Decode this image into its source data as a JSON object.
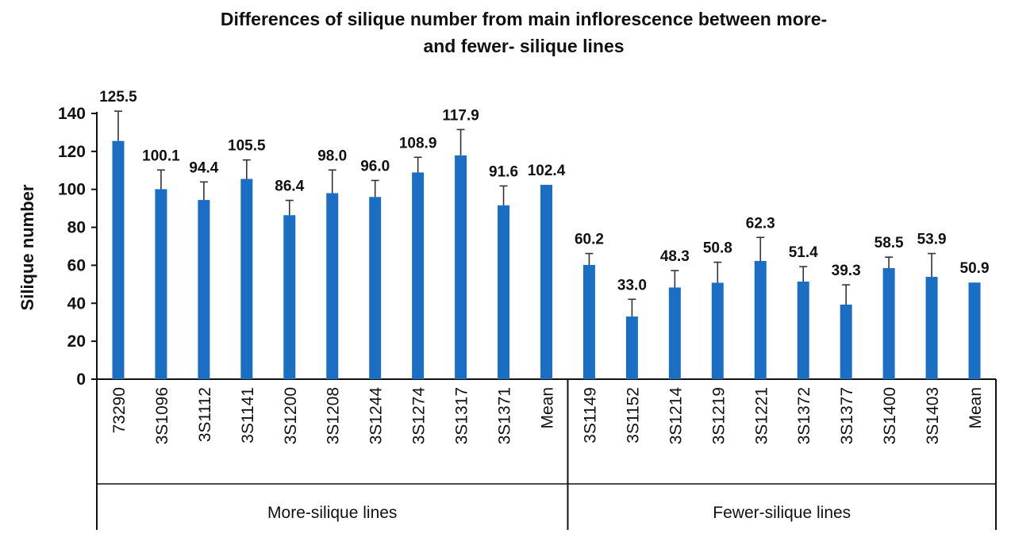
{
  "chart_data": {
    "type": "bar",
    "title_lines": [
      "Differences of silique number from main inflorescence between more-",
      "and fewer- silique  lines"
    ],
    "ylabel": "Silique number",
    "ylim": [
      0,
      140
    ],
    "yticks": [
      0,
      20,
      40,
      60,
      80,
      100,
      120,
      140
    ],
    "grid": false,
    "bar_color": "#1a6fc4",
    "categories": [
      "73290",
      "3S1096",
      "3S1112",
      "3S1141",
      "3S1200",
      "3S1208",
      "3S1244",
      "3S1274",
      "3S1317",
      "3S1371",
      "Mean",
      "3S1149",
      "3S1152",
      "3S1214",
      "3S1219",
      "3S1221",
      "3S1372",
      "3S1377",
      "3S1400",
      "3S1403",
      "Mean"
    ],
    "values": [
      125.5,
      100.1,
      94.4,
      105.5,
      86.4,
      98.0,
      96.0,
      108.9,
      117.9,
      91.6,
      102.4,
      60.2,
      33.0,
      48.3,
      50.8,
      62.3,
      51.4,
      39.3,
      58.5,
      53.9,
      50.9
    ],
    "value_labels": [
      "125.5",
      "100.1",
      "94.4",
      "105.5",
      "86.4",
      "98.0",
      "96.0",
      "108.9",
      "117.9",
      "91.6",
      "102.4",
      "60.2",
      "33.0",
      "48.3",
      "50.8",
      "62.3",
      "51.4",
      "39.3",
      "58.5",
      "53.9",
      "50.9"
    ],
    "errors": [
      15.7,
      10.1,
      9.5,
      10.0,
      7.8,
      12.2,
      8.7,
      8.0,
      13.6,
      10.2,
      0,
      6.0,
      9.1,
      8.9,
      10.8,
      12.4,
      7.9,
      10.4,
      5.8,
      12.3,
      0
    ],
    "groups": [
      {
        "label": "More-silique lines",
        "count": 11
      },
      {
        "label": "Fewer-silique lines",
        "count": 10
      }
    ]
  }
}
